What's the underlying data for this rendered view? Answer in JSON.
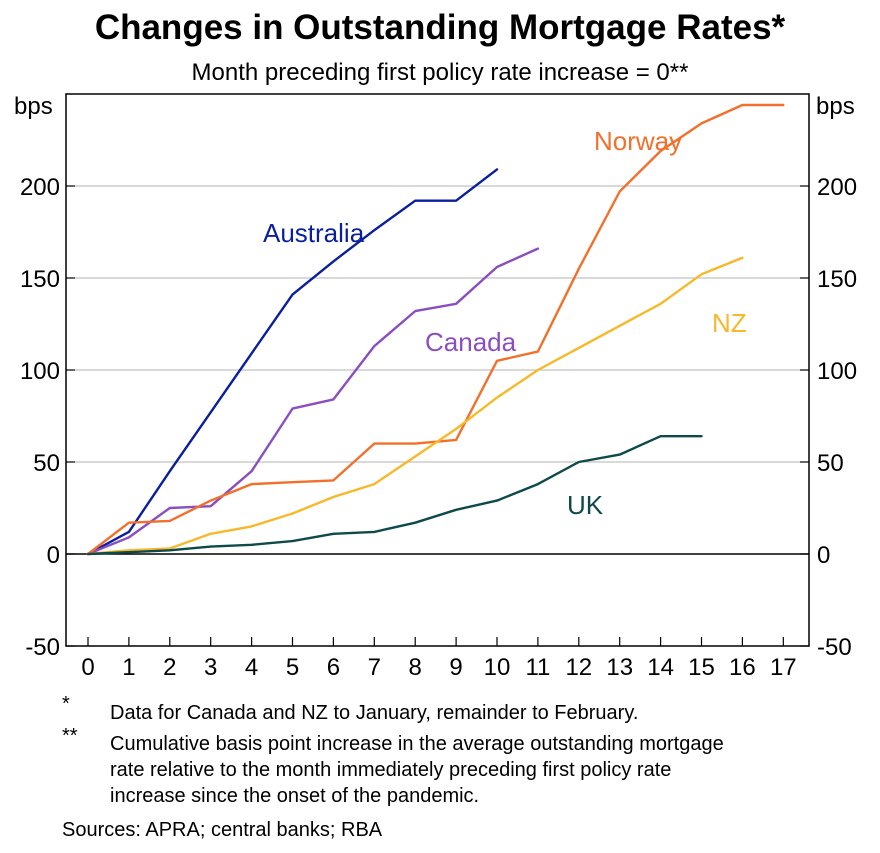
{
  "chart_data": {
    "type": "line",
    "title": "Changes in Outstanding Mortgage Rates*",
    "subtitle": "Month preceding first policy rate increase = 0**",
    "ylabel_left": "bps",
    "ylabel_right": "bps",
    "xlabel": "",
    "xlim": [
      0,
      17
    ],
    "ylim": [
      -50,
      250
    ],
    "x_ticks": [
      0,
      1,
      2,
      3,
      4,
      5,
      6,
      7,
      8,
      9,
      10,
      11,
      12,
      13,
      14,
      15,
      16,
      17
    ],
    "y_ticks": [
      -50,
      0,
      50,
      100,
      150,
      200
    ],
    "grid": true,
    "series": [
      {
        "name": "Australia",
        "color": "#0a1f9c",
        "x": [
          0,
          1,
          2,
          3,
          4,
          5,
          6,
          7,
          8,
          9,
          10
        ],
        "values": [
          0,
          12,
          45,
          77,
          109,
          141,
          159,
          176,
          192,
          192,
          209
        ]
      },
      {
        "name": "Canada",
        "color": "#8b4ec0",
        "x": [
          0,
          1,
          2,
          3,
          4,
          5,
          6,
          7,
          8,
          9,
          10,
          11
        ],
        "values": [
          0,
          9,
          25,
          26,
          45,
          79,
          84,
          113,
          132,
          136,
          156,
          166
        ]
      },
      {
        "name": "Norway",
        "color": "#f2702b",
        "x": [
          0,
          1,
          2,
          3,
          4,
          5,
          6,
          7,
          8,
          9,
          10,
          11,
          12,
          13,
          14,
          15,
          16,
          17
        ],
        "values": [
          0,
          17,
          18,
          29,
          38,
          39,
          40,
          60,
          60,
          62,
          105,
          110,
          155,
          197,
          219,
          234,
          244,
          244
        ]
      },
      {
        "name": "NZ",
        "color": "#f7b829",
        "x": [
          0,
          1,
          2,
          3,
          4,
          5,
          6,
          7,
          8,
          9,
          10,
          11,
          12,
          13,
          14,
          15,
          16
        ],
        "values": [
          0,
          2,
          3,
          11,
          15,
          22,
          31,
          38,
          53,
          68,
          85,
          100,
          112,
          124,
          136,
          152,
          161
        ]
      },
      {
        "name": "UK",
        "color": "#0e4a4c",
        "x": [
          0,
          1,
          2,
          3,
          4,
          5,
          6,
          7,
          8,
          9,
          10,
          11,
          12,
          13,
          14,
          15
        ],
        "values": [
          0,
          1,
          2,
          4,
          5,
          7,
          11,
          12,
          17,
          24,
          29,
          38,
          50,
          54,
          64,
          64
        ]
      }
    ]
  },
  "labels": {
    "australia": "Australia",
    "canada": "Canada",
    "norway": "Norway",
    "nz": "NZ",
    "uk": "UK"
  },
  "notes": {
    "star_mark": "*",
    "star_text": "Data for Canada and NZ to January, remainder to February.",
    "double_star_mark": "**",
    "double_star_line1": "Cumulative basis point increase in the average outstanding mortgage",
    "double_star_line2": "rate relative to the month immediately preceding first policy rate",
    "double_star_line3": "increase since the onset of the pandemic.",
    "sources": "Sources: APRA; central banks; RBA"
  }
}
